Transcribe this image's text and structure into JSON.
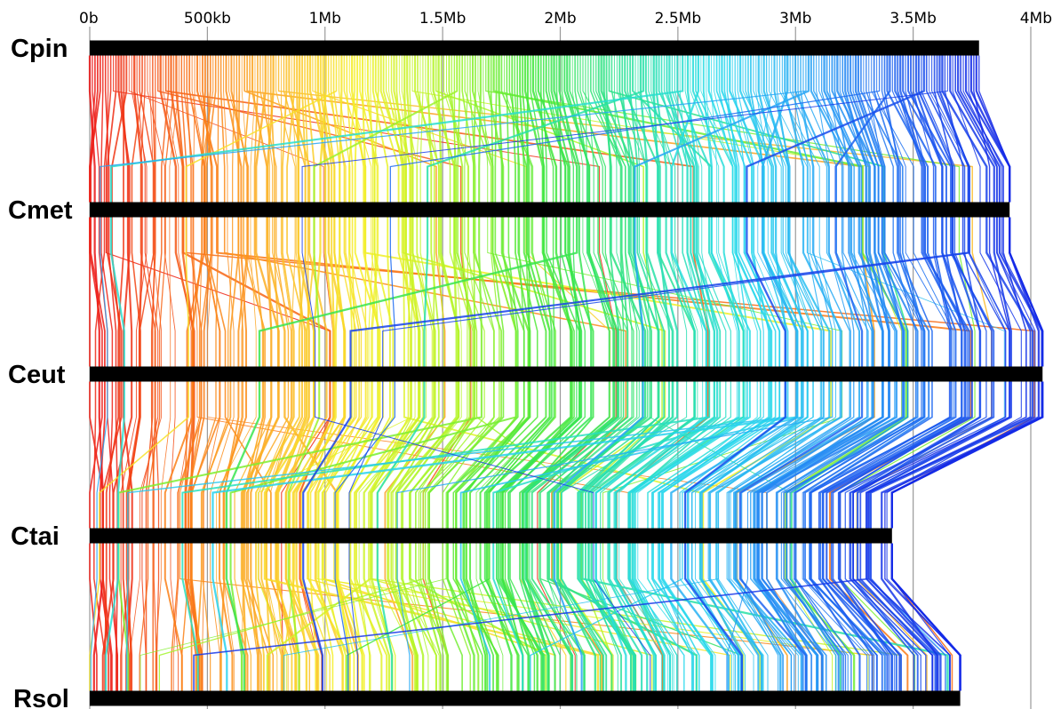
{
  "axis": {
    "unit_bp": 1000000,
    "max_bp": 4000000,
    "ticks": [
      {
        "bp": 0,
        "label": "0b"
      },
      {
        "bp": 500000,
        "label": "500kb"
      },
      {
        "bp": 1000000,
        "label": "1Mb"
      },
      {
        "bp": 1500000,
        "label": "1.5Mb"
      },
      {
        "bp": 2000000,
        "label": "2Mb"
      },
      {
        "bp": 2500000,
        "label": "2.5Mb"
      },
      {
        "bp": 3000000,
        "label": "3Mb"
      },
      {
        "bp": 3500000,
        "label": "3.5Mb"
      },
      {
        "bp": 4000000,
        "label": "4Mb"
      }
    ]
  },
  "genomes": [
    {
      "name": "Cpin",
      "length_bp": 3780000
    },
    {
      "name": "Cmet",
      "length_bp": 3910000
    },
    {
      "name": "Ceut",
      "length_bp": 4050000
    },
    {
      "name": "Ctai",
      "length_bp": 3410000
    },
    {
      "name": "Rsol",
      "length_bp": 3700000
    }
  ],
  "colormap": "rainbow-jet"
}
